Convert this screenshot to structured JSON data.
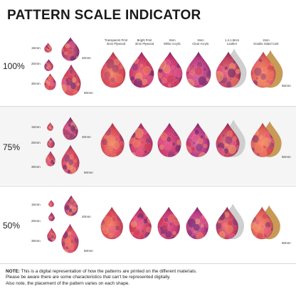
{
  "title": "PATTERN SCALE INDICATOR",
  "columns": [
    {
      "line1": "Transparent Print",
      "line2": "3mm Plywood"
    },
    {
      "line1": "Bright Print",
      "line2": "3mm Plywood"
    },
    {
      "line1": "3mm",
      "line2": "White Acrylic"
    },
    {
      "line1": "3mm",
      "line2": "Clear Acrylic"
    },
    {
      "line1": "1.4-1.8mm",
      "line2": "Leather"
    },
    {
      "line1": "2mm",
      "line2": "Double Sided Cork"
    }
  ],
  "sizes": {
    "s15": "15mm",
    "s20": "20mm",
    "s30": "30mm",
    "s40": "40mm",
    "s50": "50mm",
    "s60": "60mm"
  },
  "rows": [
    {
      "scale": "100%"
    },
    {
      "scale": "75%"
    },
    {
      "scale": "50%"
    }
  ],
  "note": {
    "label": "NOTE:",
    "text1": " This is a digital representation of how the patterns are printed on the different materials.",
    "text2": "Please be aware there are some characteristics that can't be represented digitally.",
    "text3": "Also note, the placement of the pattern varies on each shape."
  },
  "colors": {
    "red": "#d23a4f",
    "pink": "#c83a78",
    "purple": "#6b2a6e",
    "coral": "#f07a5a",
    "cork": "#c99a55",
    "leather": "#cfcfcf"
  }
}
